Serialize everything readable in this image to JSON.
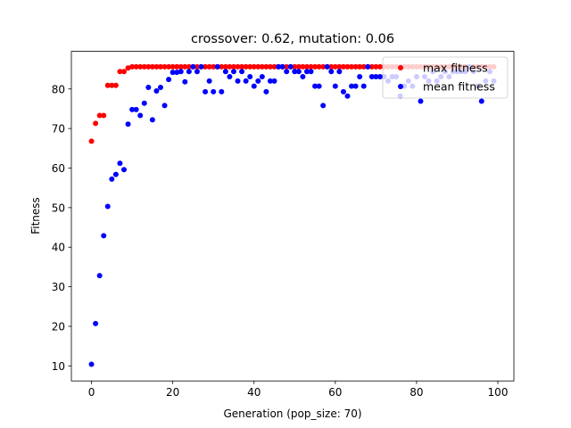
{
  "chart_data": {
    "type": "scatter",
    "title": "crossover: 0.62, mutation: 0.06",
    "xlabel": "Generation (pop_size: 70)",
    "ylabel": "Fitness",
    "xlim": [
      -4.95,
      103.95
    ],
    "ylim": [
      6.2,
      89.5
    ],
    "xticks": [
      0,
      20,
      40,
      60,
      80,
      100
    ],
    "yticks": [
      10,
      20,
      30,
      40,
      50,
      60,
      70,
      80
    ],
    "grid": false,
    "legend_position": "top-right",
    "series": [
      {
        "name": "max fitness",
        "color": "#ff0000",
        "x": [
          0,
          1,
          2,
          3,
          4,
          5,
          6,
          7,
          8,
          9,
          10,
          11,
          12,
          13,
          14,
          15,
          16,
          17,
          18,
          19,
          20,
          21,
          22,
          23,
          24,
          25,
          26,
          27,
          28,
          29,
          30,
          31,
          32,
          33,
          34,
          35,
          36,
          37,
          38,
          39,
          40,
          41,
          42,
          43,
          44,
          45,
          46,
          47,
          48,
          49,
          50,
          51,
          52,
          53,
          54,
          55,
          56,
          57,
          58,
          59,
          60,
          61,
          62,
          63,
          64,
          65,
          66,
          67,
          68,
          69,
          70,
          71,
          72,
          73,
          74,
          75,
          76,
          77,
          78,
          79,
          80,
          81,
          82,
          83,
          84,
          85,
          86,
          87,
          88,
          89,
          90,
          91,
          92,
          93,
          94,
          95,
          96,
          97,
          98,
          99
        ],
        "y": [
          66.8,
          71.3,
          73.3,
          73.3,
          80.9,
          80.9,
          80.9,
          84.4,
          84.4,
          85.3,
          85.6,
          85.6,
          85.6,
          85.6,
          85.6,
          85.6,
          85.6,
          85.6,
          85.6,
          85.6,
          85.6,
          85.6,
          85.6,
          85.6,
          85.6,
          85.6,
          85.6,
          85.6,
          85.6,
          85.6,
          85.6,
          85.6,
          85.6,
          85.6,
          85.6,
          85.6,
          85.6,
          85.6,
          85.6,
          85.6,
          85.6,
          85.6,
          85.6,
          85.6,
          85.6,
          85.6,
          85.6,
          85.6,
          85.6,
          85.6,
          85.6,
          85.6,
          85.6,
          85.6,
          85.6,
          85.6,
          85.6,
          85.6,
          85.6,
          85.6,
          85.6,
          85.6,
          85.6,
          85.6,
          85.6,
          85.6,
          85.6,
          85.6,
          85.6,
          85.6,
          85.6,
          85.6,
          85.6,
          85.6,
          85.6,
          85.6,
          85.6,
          85.6,
          85.6,
          85.6,
          85.6,
          85.6,
          85.6,
          85.6,
          85.6,
          85.6,
          85.6,
          85.6,
          85.6,
          85.6,
          85.6,
          85.6,
          85.6,
          85.6,
          85.6,
          85.6,
          85.6,
          85.6,
          85.6,
          85.6
        ]
      },
      {
        "name": "mean fitness",
        "color": "#0000ff",
        "x": [
          0,
          1,
          2,
          3,
          4,
          5,
          6,
          7,
          8,
          9,
          10,
          11,
          12,
          13,
          14,
          15,
          16,
          17,
          18,
          19,
          20,
          21,
          22,
          23,
          24,
          25,
          26,
          27,
          28,
          29,
          30,
          31,
          32,
          33,
          34,
          35,
          36,
          37,
          38,
          39,
          40,
          41,
          42,
          43,
          44,
          45,
          46,
          47,
          48,
          49,
          50,
          51,
          52,
          53,
          54,
          55,
          56,
          57,
          58,
          59,
          60,
          61,
          62,
          63,
          64,
          65,
          66,
          67,
          68,
          69,
          70,
          71,
          72,
          73,
          74,
          75,
          76,
          77,
          78,
          79,
          80,
          81,
          82,
          83,
          84,
          85,
          86,
          87,
          88,
          89,
          90,
          91,
          92,
          93,
          94,
          95,
          96,
          97,
          98,
          99
        ],
        "y": [
          10.4,
          20.7,
          32.8,
          42.9,
          50.3,
          57.2,
          58.4,
          61.2,
          59.6,
          71.1,
          74.8,
          74.8,
          73.3,
          76.4,
          80.4,
          72.2,
          79.5,
          80.4,
          75.8,
          82.4,
          84.2,
          84.2,
          84.4,
          81.8,
          84.4,
          85.6,
          84.4,
          85.6,
          79.3,
          82.0,
          79.3,
          85.6,
          79.3,
          84.4,
          83.1,
          84.4,
          82.0,
          84.4,
          82.0,
          83.1,
          80.7,
          82.0,
          83.1,
          79.3,
          82.0,
          82.0,
          85.6,
          85.6,
          84.4,
          85.6,
          84.4,
          84.4,
          83.1,
          84.4,
          84.4,
          80.7,
          80.7,
          75.8,
          85.6,
          84.4,
          80.7,
          84.4,
          79.3,
          78.2,
          80.7,
          80.7,
          83.1,
          80.7,
          85.6,
          83.1,
          83.1,
          83.1,
          83.1,
          82.0,
          83.1,
          83.1,
          78.2,
          80.7,
          82.0,
          80.7,
          83.1,
          76.9,
          83.1,
          82.0,
          84.4,
          82.0,
          83.1,
          84.4,
          83.1,
          84.4,
          84.4,
          84.4,
          84.4,
          85.6,
          84.4,
          80.7,
          76.9,
          82.0,
          84.4,
          82.0
        ]
      }
    ]
  }
}
